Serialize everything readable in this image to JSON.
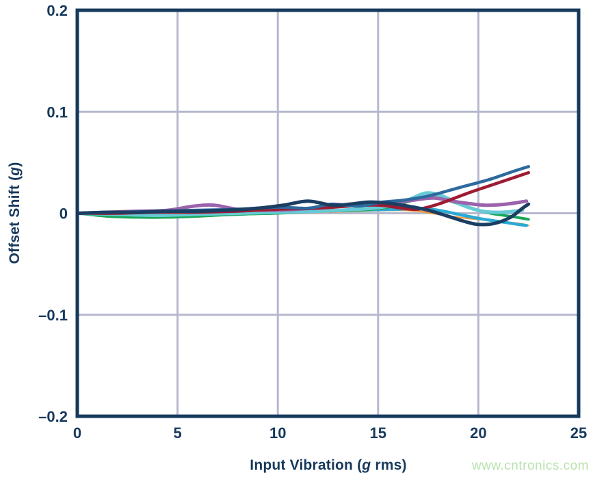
{
  "watermark": {
    "text": "www.cntronics.com",
    "color": "#b9e2ae"
  },
  "chart_data": {
    "type": "line",
    "title": "",
    "xlabel": "Input Vibration (g rms)",
    "xlabel_parts": {
      "pre": "Input Vibration (",
      "italic": "g",
      "post": " rms)"
    },
    "ylabel": "Offset Shift (g)",
    "ylabel_parts": {
      "pre": "Offset Shift (",
      "italic": "g",
      "post": ")"
    },
    "xlim": [
      0,
      25
    ],
    "ylim": [
      -0.2,
      0.2
    ],
    "x_ticks": [
      0,
      5,
      10,
      15,
      20,
      25
    ],
    "x_tick_labels": [
      "0",
      "5",
      "10",
      "15",
      "20",
      "25"
    ],
    "y_ticks": [
      0.2,
      0.1,
      0,
      -0.1,
      -0.2
    ],
    "y_tick_labels": [
      "0.2",
      "0.1",
      "0",
      "–0.1",
      "–0.2"
    ],
    "grid": true,
    "grid_color": "#b6b9ce",
    "axis_color": "#17395c",
    "text_color": "#17395c",
    "legend": "none",
    "series": [
      {
        "name": "orange",
        "color": "#f09a3e",
        "stroke_width": 2.5,
        "x": [
          0,
          2,
          4,
          6,
          8,
          10,
          12,
          14,
          16,
          17,
          18,
          19,
          20,
          21,
          22,
          22.5
        ],
        "y": [
          0,
          -0.001,
          -0.002,
          -0.002,
          -0.001,
          0.0,
          0.001,
          0.002,
          0.003,
          0.002,
          -0.001,
          -0.004,
          -0.006,
          -0.008,
          -0.01,
          -0.012
        ]
      },
      {
        "name": "cyan",
        "color": "#2baad3",
        "stroke_width": 4.5,
        "x": [
          0,
          2,
          4,
          6,
          8,
          10,
          12,
          14,
          16,
          17,
          18,
          19,
          20,
          21,
          22,
          22.4
        ],
        "y": [
          0,
          -0.002,
          -0.003,
          -0.002,
          -0.001,
          0.001,
          0.002,
          0.003,
          0.004,
          0.005,
          0.003,
          -0.001,
          -0.005,
          -0.008,
          -0.011,
          -0.012
        ]
      },
      {
        "name": "green",
        "color": "#1aa65a",
        "stroke_width": 4,
        "x": [
          0,
          1.5,
          3,
          4.5,
          6,
          8,
          10,
          12,
          14,
          15.5,
          16.6,
          17.6,
          18.6,
          19.6,
          20.6,
          21.6,
          22.5
        ],
        "y": [
          0,
          -0.003,
          -0.004,
          -0.004,
          -0.003,
          -0.001,
          0.0,
          0.002,
          0.003,
          0.006,
          0.012,
          0.016,
          0.012,
          0.005,
          0.0,
          -0.003,
          -0.006
        ]
      },
      {
        "name": "teal",
        "color": "#66cbd6",
        "stroke_width": 5,
        "x": [
          0,
          2,
          4,
          6,
          8,
          10,
          12,
          14,
          15.5,
          16.6,
          17.4,
          18.2,
          19.2,
          20.2,
          21.2,
          22.2
        ],
        "y": [
          0,
          -0.001,
          -0.002,
          -0.001,
          0.0,
          0.001,
          0.002,
          0.004,
          0.007,
          0.014,
          0.02,
          0.017,
          0.008,
          0.002,
          0.001,
          0.003
        ]
      },
      {
        "name": "purple",
        "color": "#9b63ad",
        "stroke_width": 5,
        "x": [
          0,
          1.5,
          3,
          4.5,
          5.8,
          6.8,
          8,
          9.5,
          11,
          12.5,
          14,
          15.5,
          16.8,
          17.8,
          19,
          20.3,
          21.4,
          22.4
        ],
        "y": [
          0,
          0.001,
          0.002,
          0.003,
          0.007,
          0.008,
          0.004,
          0.003,
          0.004,
          0.006,
          0.008,
          0.01,
          0.013,
          0.015,
          0.011,
          0.008,
          0.009,
          0.012
        ]
      },
      {
        "name": "crimson",
        "color": "#9e1b32",
        "stroke_width": 4.5,
        "x": [
          0,
          2,
          4,
          6,
          8,
          10,
          12,
          13.5,
          15,
          16.2,
          17,
          18,
          19.5,
          21,
          22.5
        ],
        "y": [
          0,
          0.0,
          0.001,
          0.001,
          0.002,
          0.004,
          0.005,
          0.007,
          0.008,
          0.005,
          0.004,
          0.009,
          0.02,
          0.03,
          0.04
        ]
      },
      {
        "name": "steel-blue",
        "color": "#2d6a9e",
        "stroke_width": 4.5,
        "x": [
          0,
          2,
          4,
          6,
          8,
          10,
          11.5,
          12.7,
          14,
          15.2,
          16.3,
          17.5,
          19,
          20.5,
          21.7,
          22.5
        ],
        "y": [
          0,
          0.001,
          0.002,
          0.003,
          0.004,
          0.006,
          0.005,
          0.009,
          0.007,
          0.011,
          0.013,
          0.017,
          0.025,
          0.033,
          0.041,
          0.046
        ]
      },
      {
        "name": "navy",
        "color": "#1b3e63",
        "stroke_width": 5,
        "x": [
          0,
          1.5,
          3,
          4.5,
          6,
          7.5,
          9,
          10.3,
          11.5,
          12.7,
          13.6,
          14.5,
          15.5,
          16.5,
          17.5,
          18.5,
          19.3,
          20,
          20.8,
          21.6,
          22.2,
          22.5
        ],
        "y": [
          0,
          0.001,
          0.001,
          0.002,
          0.002,
          0.003,
          0.005,
          0.008,
          0.012,
          0.008,
          0.009,
          0.011,
          0.01,
          0.007,
          0.003,
          -0.003,
          -0.008,
          -0.011,
          -0.01,
          -0.004,
          0.005,
          0.009
        ]
      }
    ]
  }
}
